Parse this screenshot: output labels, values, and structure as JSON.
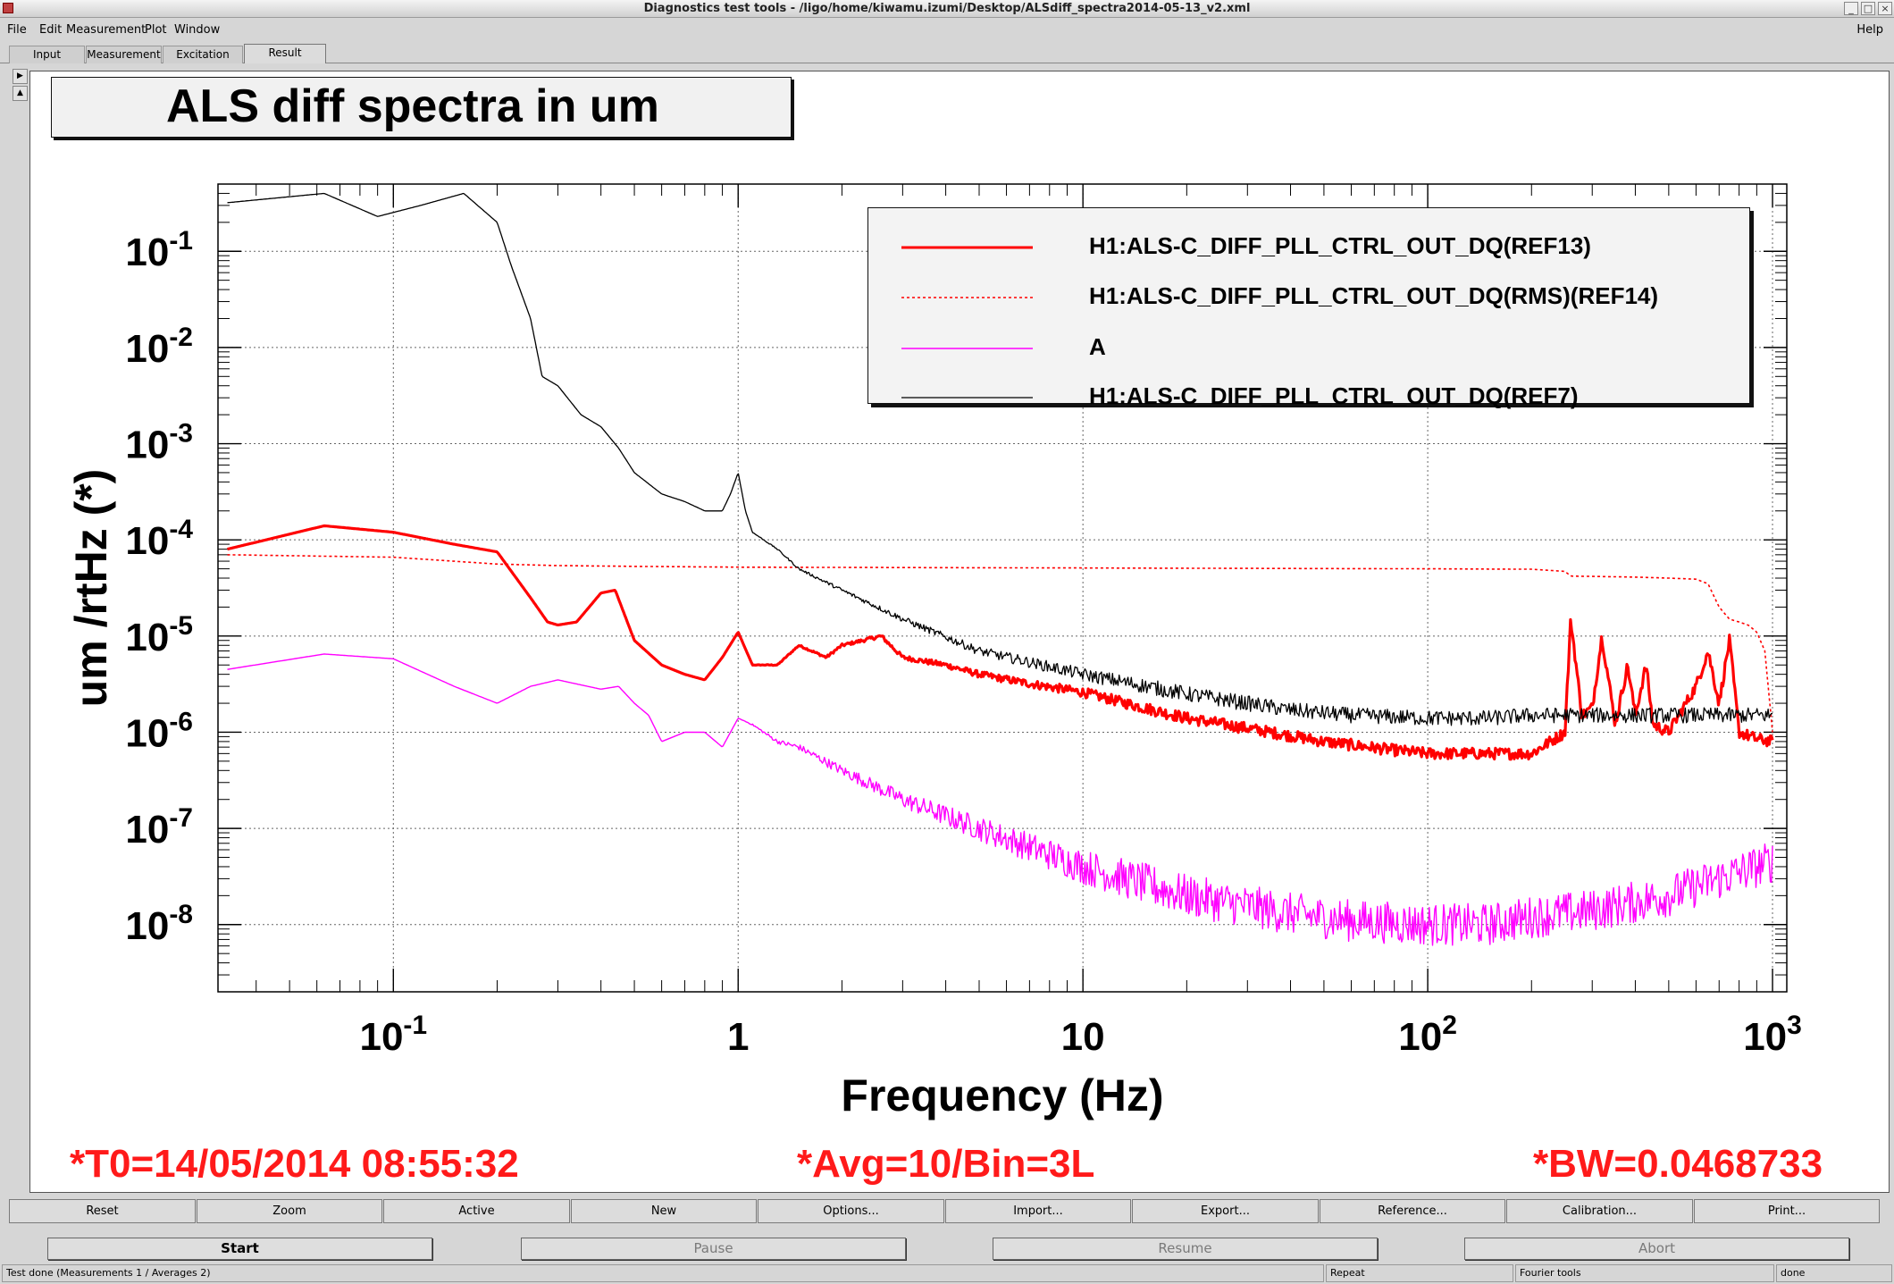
{
  "window": {
    "title": "Diagnostics test tools - /ligo/home/kiwamu.izumi/Desktop/ALSdiff_spectra2014-05-13_v2.xml"
  },
  "menu": {
    "items": [
      "File",
      "Edit",
      "Measurement",
      "Plot",
      "Window"
    ],
    "help": "Help"
  },
  "tabs": [
    "Input",
    "Measurement",
    "Excitation",
    "Result"
  ],
  "active_tab": "Result",
  "chart_data": {
    "type": "line",
    "title": "ALS diff spectra in um",
    "xlabel": "Frequency (Hz)",
    "ylabel": "um /rtHz (*)",
    "xscale": "log",
    "yscale": "log",
    "xlim": [
      0.031,
      1100
    ],
    "ylim": [
      2e-09,
      0.5
    ],
    "grid": true,
    "legend_position": "top-right",
    "x_ticks": [
      {
        "value": 0.1,
        "base": "10",
        "exp": "-1"
      },
      {
        "value": 1,
        "base": "1",
        "exp": ""
      },
      {
        "value": 10,
        "base": "10",
        "exp": ""
      },
      {
        "value": 100,
        "base": "10",
        "exp": "2"
      },
      {
        "value": 1000,
        "base": "10",
        "exp": "3"
      }
    ],
    "y_ticks": [
      {
        "value": 0.1,
        "base": "10",
        "exp": "-1"
      },
      {
        "value": 0.01,
        "base": "10",
        "exp": "-2"
      },
      {
        "value": 0.001,
        "base": "10",
        "exp": "-3"
      },
      {
        "value": 0.0001,
        "base": "10",
        "exp": "-4"
      },
      {
        "value": 1e-05,
        "base": "10",
        "exp": "-5"
      },
      {
        "value": 1e-06,
        "base": "10",
        "exp": "-6"
      },
      {
        "value": 1e-07,
        "base": "10",
        "exp": "-7"
      },
      {
        "value": 1e-08,
        "base": "10",
        "exp": "-8"
      }
    ],
    "series": [
      {
        "name": "H1:ALS-C_DIFF_PLL_CTRL_OUT_DQ(REF13)",
        "color": "#ff0000",
        "width": 3.2,
        "dash": "",
        "x": [
          0.033,
          0.063,
          0.1,
          0.15,
          0.2,
          0.25,
          0.28,
          0.3,
          0.34,
          0.4,
          0.44,
          0.5,
          0.6,
          0.7,
          0.8,
          0.9,
          1.0,
          1.1,
          1.3,
          1.5,
          1.8,
          2.0,
          2.3,
          2.6,
          3.0,
          4.0,
          5.0,
          7.0,
          10,
          15,
          20,
          30,
          50,
          80,
          100,
          150,
          200,
          250,
          260,
          280,
          300,
          320,
          350,
          380,
          400,
          430,
          450,
          500,
          600,
          650,
          700,
          750,
          800,
          900,
          1000
        ],
        "y": [
          8e-05,
          0.00014,
          0.00012,
          9e-05,
          7.5e-05,
          2.5e-05,
          1.4e-05,
          1.3e-05,
          1.4e-05,
          2.8e-05,
          3e-05,
          9e-06,
          5e-06,
          4e-06,
          3.5e-06,
          6e-06,
          1.1e-05,
          5e-06,
          5e-06,
          8e-06,
          6e-06,
          8e-06,
          9e-06,
          1e-05,
          6e-06,
          5e-06,
          4e-06,
          3.2e-06,
          2.6e-06,
          1.8e-06,
          1.4e-06,
          1.1e-06,
          8e-07,
          6.5e-07,
          6e-07,
          6e-07,
          6e-07,
          1e-06,
          1.5e-05,
          1.5e-06,
          1.8e-06,
          1e-05,
          1.2e-06,
          5e-06,
          1.5e-06,
          5e-06,
          1.2e-06,
          1e-06,
          3e-06,
          7e-06,
          2e-06,
          9e-06,
          1e-06,
          8.5e-07,
          8e-07
        ]
      },
      {
        "name": "H1:ALS-C_DIFF_PLL_CTRL_OUT_DQ(RMS)(REF14)",
        "color": "#ff0000",
        "width": 1.6,
        "dash": "3,3",
        "x": [
          0.033,
          0.1,
          0.2,
          0.3,
          0.5,
          1,
          3,
          10,
          30,
          100,
          200,
          250,
          260,
          400,
          500,
          600,
          650,
          700,
          750,
          800,
          850,
          900,
          950,
          1000
        ],
        "y": [
          7e-05,
          6.6e-05,
          5.6e-05,
          5.4e-05,
          5.3e-05,
          5.2e-05,
          5.15e-05,
          5.1e-05,
          5.05e-05,
          5e-05,
          4.95e-05,
          4.7e-05,
          4.2e-05,
          4.1e-05,
          4e-05,
          3.9e-05,
          3.5e-05,
          2e-05,
          1.5e-05,
          1.4e-05,
          1.3e-05,
          1.1e-05,
          7e-06,
          1e-06
        ]
      },
      {
        "name": "A",
        "color": "#ff00ff",
        "width": 1.4,
        "dash": "",
        "x": [
          0.033,
          0.063,
          0.1,
          0.15,
          0.2,
          0.25,
          0.3,
          0.4,
          0.45,
          0.5,
          0.55,
          0.6,
          0.7,
          0.8,
          0.9,
          1.0,
          1.1,
          1.3,
          1.5,
          2.0,
          3.0,
          5.0,
          10,
          20,
          40,
          60,
          100,
          150,
          200,
          300,
          500,
          700,
          1000
        ],
        "y": [
          4.5e-06,
          6.5e-06,
          5.8e-06,
          3e-06,
          2e-06,
          3e-06,
          3.5e-06,
          2.8e-06,
          3e-06,
          2e-06,
          1.5e-06,
          8e-07,
          1e-06,
          1e-06,
          7e-07,
          1.4e-06,
          1.2e-06,
          8e-07,
          7e-07,
          4e-07,
          2e-07,
          1e-07,
          4e-08,
          2e-08,
          1.3e-08,
          1.1e-08,
          1e-08,
          1e-08,
          1.2e-08,
          1.4e-08,
          2e-08,
          3e-08,
          4.5e-08
        ]
      },
      {
        "name": "H1:ALS-C_DIFF_PLL_CTRL_OUT_DQ(REF7)",
        "color": "#000000",
        "width": 1.3,
        "dash": "",
        "x": [
          0.033,
          0.063,
          0.09,
          0.12,
          0.16,
          0.2,
          0.22,
          0.25,
          0.27,
          0.3,
          0.35,
          0.4,
          0.45,
          0.5,
          0.6,
          0.7,
          0.8,
          0.9,
          0.95,
          1.0,
          1.05,
          1.1,
          1.3,
          1.5,
          2.0,
          3.0,
          5.0,
          10,
          20,
          40,
          60,
          100,
          150,
          200,
          300,
          500,
          700,
          1000
        ],
        "y": [
          0.32,
          0.4,
          0.23,
          0.3,
          0.4,
          0.2,
          0.07,
          0.02,
          0.005,
          0.004,
          0.002,
          0.0015,
          0.0009,
          0.0005,
          0.0003,
          0.00025,
          0.0002,
          0.0002,
          0.0003,
          0.0005,
          0.0002,
          0.00012,
          8e-05,
          5e-05,
          3e-05,
          1.5e-05,
          7e-06,
          4e-06,
          2.5e-06,
          1.7e-06,
          1.5e-06,
          1.4e-06,
          1.4e-06,
          1.5e-06,
          1.5e-06,
          1.5e-06,
          1.5e-06,
          1.5e-06
        ]
      }
    ]
  },
  "status": {
    "t0": "*T0=14/05/2014 08:55:32",
    "avg": "*Avg=10/Bin=3L",
    "bw": "*BW=0.0468733"
  },
  "toolbar": [
    "Reset",
    "Zoom",
    "Active",
    "New",
    "Options...",
    "Import...",
    "Export...",
    "Reference...",
    "Calibration...",
    "Print..."
  ],
  "controls": {
    "start": "Start",
    "pause": "Pause",
    "resume": "Resume",
    "abort": "Abort"
  },
  "statusbar": {
    "message": "Test done (Measurements 1 / Averages 2)",
    "mode": "Repeat",
    "tool": "Fourier tools",
    "state": "done"
  }
}
